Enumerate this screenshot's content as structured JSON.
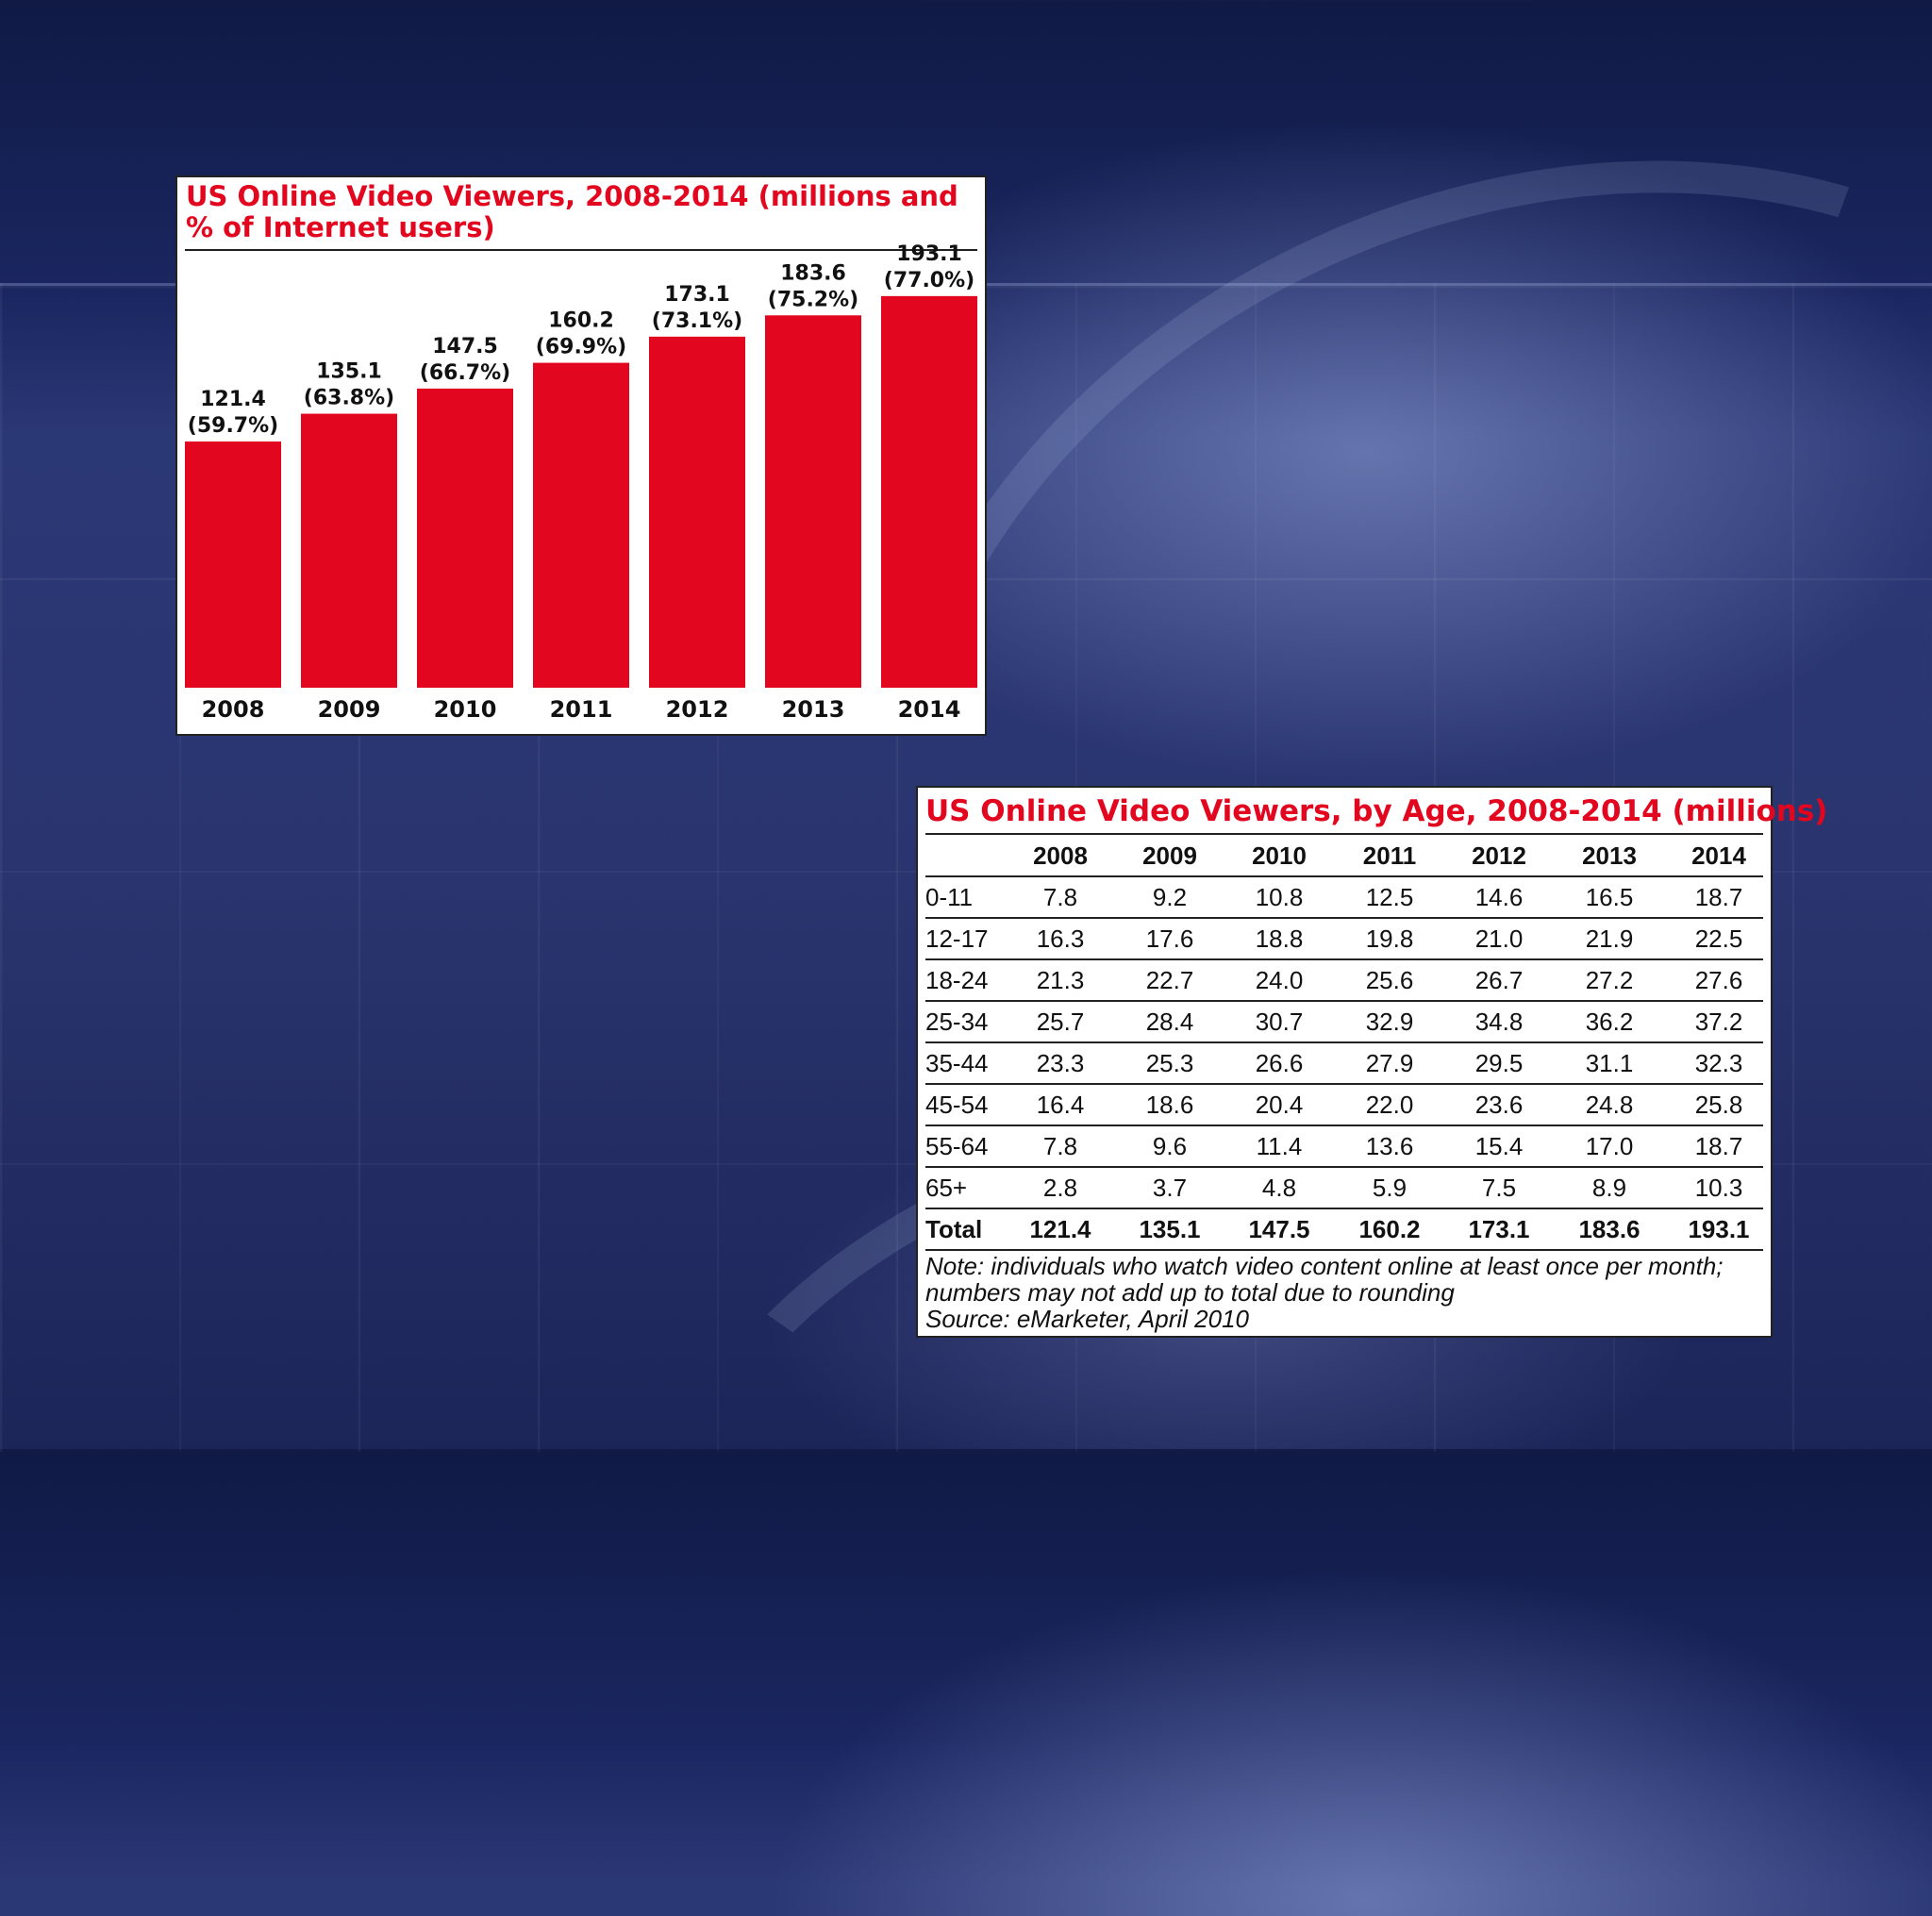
{
  "chart_data": [
    {
      "type": "bar",
      "title": "US Online Video Viewers, 2008-2014 (millions and % of Internet users)",
      "categories": [
        "2008",
        "2009",
        "2010",
        "2011",
        "2012",
        "2013",
        "2014"
      ],
      "values": [
        121.4,
        135.1,
        147.5,
        160.2,
        173.1,
        183.6,
        193.1
      ],
      "percent_labels": [
        "(59.7%)",
        "(63.8%)",
        "(66.7%)",
        "(69.9%)",
        "(73.1%)",
        "(75.2%)",
        "(77.0%)"
      ],
      "value_labels": [
        "121.4",
        "135.1",
        "147.5",
        "160.2",
        "173.1",
        "183.6",
        "193.1"
      ],
      "ylim": [
        0,
        200
      ],
      "bar_color": "#e2061f",
      "grid": false,
      "xlabel": "",
      "ylabel": ""
    },
    {
      "type": "table",
      "title": "US Online Video Viewers, by Age, 2008-2014 (millions)",
      "columns": [
        "",
        "2008",
        "2009",
        "2010",
        "2011",
        "2012",
        "2013",
        "2014"
      ],
      "rows": [
        [
          "0-11",
          "7.8",
          "9.2",
          "10.8",
          "12.5",
          "14.6",
          "16.5",
          "18.7"
        ],
        [
          "12-17",
          "16.3",
          "17.6",
          "18.8",
          "19.8",
          "21.0",
          "21.9",
          "22.5"
        ],
        [
          "18-24",
          "21.3",
          "22.7",
          "24.0",
          "25.6",
          "26.7",
          "27.2",
          "27.6"
        ],
        [
          "25-34",
          "25.7",
          "28.4",
          "30.7",
          "32.9",
          "34.8",
          "36.2",
          "37.2"
        ],
        [
          "35-44",
          "23.3",
          "25.3",
          "26.6",
          "27.9",
          "29.5",
          "31.1",
          "32.3"
        ],
        [
          "45-54",
          "16.4",
          "18.6",
          "20.4",
          "22.0",
          "23.6",
          "24.8",
          "25.8"
        ],
        [
          "55-64",
          "7.8",
          "9.6",
          "11.4",
          "13.6",
          "15.4",
          "17.0",
          "18.7"
        ],
        [
          "65+",
          "2.8",
          "3.7",
          "4.8",
          "5.9",
          "7.5",
          "8.9",
          "10.3"
        ]
      ],
      "total_row": [
        "Total",
        "121.4",
        "135.1",
        "147.5",
        "160.2",
        "173.1",
        "183.6",
        "193.1"
      ],
      "note_lines": [
        "Note: individuals who watch video content online at least once per month;",
        "numbers may not add up to total due to rounding",
        "Source: eMarketer, April 2010"
      ]
    }
  ]
}
